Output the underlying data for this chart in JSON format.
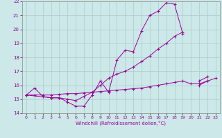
{
  "background_color": "#cce8e8",
  "grid_color": "#aacccc",
  "line_color": "#990099",
  "xlabel": "Windchill (Refroidissement éolien,°C)",
  "xlim": [
    -0.5,
    23.5
  ],
  "ylim": [
    14,
    22
  ],
  "yticks": [
    14,
    15,
    16,
    17,
    18,
    19,
    20,
    21,
    22
  ],
  "xticks": [
    0,
    1,
    2,
    3,
    4,
    5,
    6,
    7,
    8,
    9,
    10,
    11,
    12,
    13,
    14,
    15,
    16,
    17,
    18,
    19,
    20,
    21,
    22,
    23
  ],
  "series": [
    {
      "x": [
        0,
        1,
        2,
        3,
        4,
        5,
        6,
        7,
        8,
        9,
        10,
        11,
        12,
        13,
        14,
        15,
        16,
        17,
        18,
        19,
        20,
        21,
        22
      ],
      "y": [
        15.3,
        15.8,
        15.2,
        15.1,
        15.1,
        14.8,
        14.5,
        14.5,
        15.3,
        16.3,
        15.5,
        17.8,
        18.5,
        18.4,
        19.9,
        21.0,
        21.3,
        21.9,
        21.8,
        19.7,
        null,
        16.0,
        16.3
      ]
    },
    {
      "x": [
        0,
        3,
        4,
        5,
        6,
        7,
        8,
        9,
        10,
        11,
        12,
        13,
        14,
        15,
        16,
        17,
        18,
        19,
        20,
        21,
        22
      ],
      "y": [
        15.3,
        15.1,
        15.1,
        15.0,
        14.9,
        15.2,
        15.5,
        16.0,
        16.5,
        16.8,
        17.0,
        17.3,
        17.7,
        18.1,
        18.6,
        19.0,
        19.5,
        19.8,
        null,
        16.3,
        16.6
      ]
    },
    {
      "x": [
        0,
        1,
        2,
        3,
        4,
        5,
        6,
        7,
        8,
        9,
        10,
        11,
        12,
        13,
        14,
        15,
        16,
        17,
        18,
        19,
        20,
        21,
        22,
        23
      ],
      "y": [
        15.3,
        15.3,
        15.3,
        15.3,
        15.35,
        15.4,
        15.4,
        15.45,
        15.5,
        15.55,
        15.6,
        15.65,
        15.7,
        15.75,
        15.8,
        15.9,
        16.0,
        16.1,
        16.2,
        16.3,
        16.1,
        16.1,
        16.3,
        16.5
      ]
    }
  ]
}
